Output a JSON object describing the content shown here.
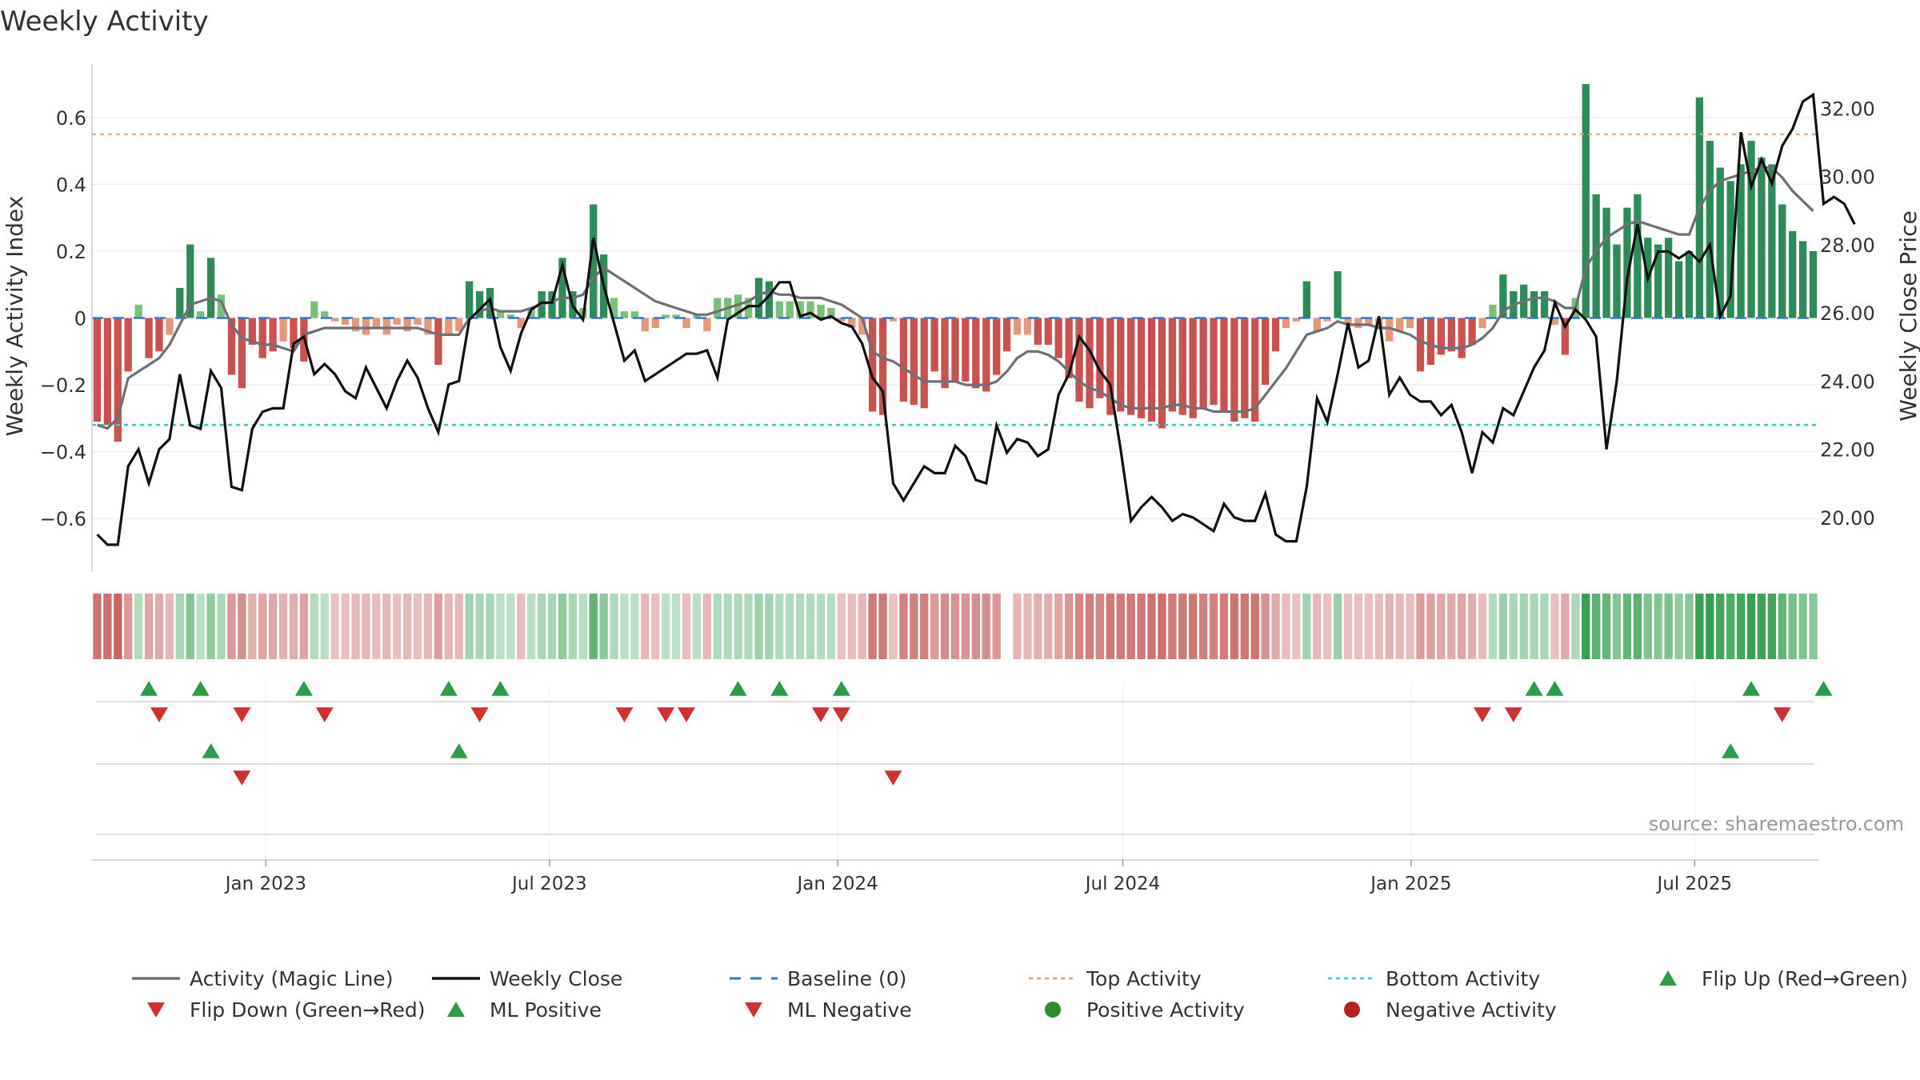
{
  "chart_data": {
    "type": "bar",
    "title": "Weekly Activity",
    "ylabel": "Weekly Activity Index",
    "y2label": "Weekly Close Price",
    "ylim": [
      -0.76,
      0.76
    ],
    "y2lim": [
      18.4,
      33.3
    ],
    "yticks": [
      0.6,
      0.4,
      0.2,
      0,
      -0.2,
      -0.4,
      -0.6
    ],
    "ytick_labels": [
      "0.6",
      "0.4",
      "0.2",
      "0",
      "−0.2",
      "−0.4",
      "−0.6"
    ],
    "y2ticks": [
      32,
      30,
      28,
      26,
      24,
      22,
      20
    ],
    "y2tick_labels": [
      "32.00",
      "30.00",
      "28.00",
      "26.00",
      "24.00",
      "22.00",
      "20.00"
    ],
    "x_start_date": "2022-09-12",
    "x_end_date": "2025-09-18",
    "x_ticks": [
      {
        "date": "2023-01-01",
        "label": "Jan 2023"
      },
      {
        "date": "2023-07-01",
        "label": "Jul 2023"
      },
      {
        "date": "2024-01-01",
        "label": "Jan 2024"
      },
      {
        "date": "2024-07-01",
        "label": "Jul 2024"
      },
      {
        "date": "2025-01-01",
        "label": "Jan 2025"
      },
      {
        "date": "2025-07-01",
        "label": "Jul 2025"
      }
    ],
    "top_activity": 0.55,
    "bottom_activity": -0.32,
    "baseline": 0,
    "activity_values": [
      -0.31,
      -0.32,
      -0.37,
      -0.16,
      0.04,
      -0.12,
      -0.1,
      -0.05,
      0.09,
      0.22,
      0.02,
      0.18,
      0.07,
      -0.17,
      -0.21,
      -0.08,
      -0.12,
      -0.1,
      -0.07,
      -0.09,
      -0.13,
      0.05,
      0.02,
      -0.01,
      -0.02,
      -0.04,
      -0.05,
      -0.03,
      -0.05,
      -0.02,
      -0.04,
      -0.02,
      -0.05,
      -0.14,
      -0.05,
      -0.04,
      0.11,
      0.08,
      0.09,
      0.02,
      0.01,
      -0.03,
      0.03,
      0.08,
      0.08,
      0.18,
      0.08,
      0.03,
      0.34,
      0.19,
      0.06,
      0.02,
      0.02,
      -0.04,
      -0.03,
      0.01,
      0.01,
      -0.03,
      0.01,
      -0.04,
      0.06,
      0.06,
      0.07,
      0.06,
      0.12,
      0.11,
      0.05,
      0.05,
      0.05,
      0.05,
      0.04,
      0.03,
      -0.01,
      -0.03,
      -0.05,
      -0.28,
      -0.29,
      -0.01,
      -0.25,
      -0.26,
      -0.27,
      -0.16,
      -0.21,
      -0.19,
      -0.19,
      -0.21,
      -0.22,
      -0.17,
      -0.1,
      -0.05,
      -0.05,
      -0.08,
      -0.08,
      -0.12,
      -0.18,
      -0.25,
      -0.27,
      -0.24,
      -0.29,
      -0.28,
      -0.29,
      -0.3,
      -0.31,
      -0.33,
      -0.28,
      -0.29,
      -0.3,
      -0.27,
      -0.26,
      -0.28,
      -0.31,
      -0.3,
      -0.31,
      -0.2,
      -0.1,
      -0.03,
      -0.01,
      0.11,
      -0.04,
      -0.01,
      0.14,
      -0.02,
      -0.03,
      -0.02,
      -0.03,
      -0.07,
      -0.04,
      -0.03,
      -0.16,
      -0.14,
      -0.11,
      -0.1,
      -0.12,
      -0.08,
      -0.03,
      0.04,
      0.13,
      0.08,
      0.1,
      0.08,
      0.08,
      -0.02,
      -0.11,
      0.06,
      0.7,
      0.37,
      0.33,
      0.22,
      0.33,
      0.37,
      0.24,
      0.22,
      0.24,
      0.17,
      0.2,
      0.66,
      0.53,
      0.45,
      0.41,
      0.46,
      0.53,
      0.48,
      0.46,
      0.34,
      0.26,
      0.23,
      0.2
    ],
    "heatmap_gap_index": 88,
    "magic_line": [
      -0.32,
      -0.33,
      -0.3,
      -0.18,
      -0.16,
      -0.14,
      -0.12,
      -0.08,
      -0.02,
      0.04,
      0.05,
      0.06,
      0.05,
      -0.02,
      -0.06,
      -0.07,
      -0.08,
      -0.08,
      -0.09,
      -0.1,
      -0.05,
      -0.04,
      -0.03,
      -0.03,
      -0.03,
      -0.03,
      -0.03,
      -0.03,
      -0.03,
      -0.03,
      -0.03,
      -0.03,
      -0.04,
      -0.05,
      -0.05,
      -0.05,
      0.0,
      0.02,
      0.03,
      0.02,
      0.02,
      0.02,
      0.03,
      0.04,
      0.05,
      0.06,
      0.06,
      0.07,
      0.12,
      0.15,
      0.13,
      0.11,
      0.09,
      0.07,
      0.05,
      0.04,
      0.03,
      0.02,
      0.01,
      0.01,
      0.02,
      0.03,
      0.04,
      0.05,
      0.07,
      0.08,
      0.07,
      0.07,
      0.06,
      0.06,
      0.06,
      0.05,
      0.04,
      0.02,
      0.0,
      -0.1,
      -0.12,
      -0.13,
      -0.15,
      -0.17,
      -0.19,
      -0.19,
      -0.19,
      -0.19,
      -0.2,
      -0.2,
      -0.2,
      -0.19,
      -0.16,
      -0.12,
      -0.1,
      -0.1,
      -0.11,
      -0.13,
      -0.16,
      -0.19,
      -0.21,
      -0.22,
      -0.24,
      -0.26,
      -0.27,
      -0.27,
      -0.27,
      -0.27,
      -0.26,
      -0.26,
      -0.27,
      -0.27,
      -0.28,
      -0.28,
      -0.28,
      -0.28,
      -0.27,
      -0.23,
      -0.19,
      -0.15,
      -0.1,
      -0.05,
      -0.04,
      -0.03,
      -0.01,
      -0.02,
      -0.02,
      -0.02,
      -0.03,
      -0.03,
      -0.04,
      -0.05,
      -0.07,
      -0.08,
      -0.09,
      -0.09,
      -0.09,
      -0.08,
      -0.06,
      -0.03,
      0.02,
      0.04,
      0.05,
      0.06,
      0.06,
      0.05,
      0.03,
      0.03,
      0.15,
      0.2,
      0.24,
      0.26,
      0.28,
      0.29,
      0.28,
      0.27,
      0.26,
      0.25,
      0.25,
      0.33,
      0.38,
      0.41,
      0.42,
      0.43,
      0.44,
      0.45,
      0.45,
      0.42,
      0.38,
      0.35,
      0.32
    ],
    "weekly_close": [
      19.5,
      19.2,
      19.2,
      21.5,
      22.0,
      21.0,
      22.0,
      22.3,
      24.2,
      22.7,
      22.6,
      24.3,
      23.8,
      20.9,
      20.8,
      22.6,
      23.1,
      23.2,
      23.2,
      25.1,
      25.3,
      24.2,
      24.5,
      24.2,
      23.7,
      23.5,
      24.4,
      23.8,
      23.2,
      24.0,
      24.6,
      24.1,
      23.2,
      22.5,
      23.9,
      24.0,
      25.8,
      26.1,
      26.4,
      25.0,
      24.3,
      25.4,
      26.1,
      26.3,
      26.3,
      27.4,
      26.2,
      25.8,
      28.2,
      26.8,
      25.7,
      24.6,
      24.9,
      24.0,
      24.2,
      24.4,
      24.6,
      24.8,
      24.8,
      24.9,
      24.1,
      25.8,
      26.0,
      26.2,
      26.2,
      26.5,
      26.9,
      26.9,
      25.9,
      26.0,
      25.8,
      25.9,
      25.7,
      25.6,
      25.1,
      24.1,
      23.7,
      21.0,
      20.5,
      21.0,
      21.5,
      21.3,
      21.3,
      22.1,
      21.8,
      21.1,
      21.0,
      22.7,
      21.9,
      22.3,
      22.2,
      21.8,
      22.0,
      23.6,
      24.2,
      25.3,
      24.9,
      24.3,
      23.9,
      22.0,
      19.9,
      20.3,
      20.6,
      20.3,
      19.9,
      20.1,
      20.0,
      19.8,
      19.6,
      20.4,
      20.0,
      19.9,
      19.9,
      20.7,
      19.5,
      19.3,
      19.3,
      20.9,
      23.5,
      22.8,
      24.2,
      25.7,
      24.4,
      24.6,
      25.9,
      23.6,
      24.1,
      23.6,
      23.4,
      23.4,
      23.0,
      23.3,
      22.5,
      21.3,
      22.5,
      22.2,
      23.2,
      23.0,
      23.7,
      24.4,
      24.9,
      26.3,
      25.6,
      26.1,
      25.8,
      25.3,
      22.0,
      24.0,
      27.0,
      28.6,
      27.0,
      27.8,
      27.8,
      27.6,
      27.8,
      27.5,
      28.0,
      25.9,
      26.5,
      31.3,
      29.7,
      30.5,
      29.8,
      30.9,
      31.4,
      32.2,
      32.4,
      29.2,
      29.4,
      29.2,
      28.6
    ],
    "signal_rows": {
      "flip_up": [
        5,
        10,
        20,
        34,
        39,
        62,
        66,
        72,
        139,
        141,
        160,
        167
      ],
      "flip_down": [
        6,
        14,
        22,
        37,
        51,
        55,
        57,
        70,
        72,
        134,
        137,
        163
      ],
      "ml_positive": [
        11,
        35,
        158
      ],
      "ml_negative": [
        14,
        77
      ]
    },
    "source": "source: sharemaestro.com",
    "legend": [
      {
        "label": "Activity (Magic Line)",
        "kind": "line",
        "color": "#6f6f76"
      },
      {
        "label": "Weekly Close",
        "kind": "line",
        "color": "#111111"
      },
      {
        "label": "Baseline (0)",
        "kind": "dash",
        "color": "#3a78c2"
      },
      {
        "label": "Top Activity",
        "kind": "dot",
        "color": "#e0a070"
      },
      {
        "label": "Bottom Activity",
        "kind": "dot",
        "color": "#3cc7c7"
      },
      {
        "label": "Flip Up (Red→Green)",
        "kind": "tri-up",
        "color": "#2e9a4a"
      },
      {
        "label": "Flip Down (Green→Red)",
        "kind": "tri-down",
        "color": "#d03030"
      },
      {
        "label": "ML Positive",
        "kind": "tri-up",
        "color": "#2e9a4a"
      },
      {
        "label": "ML Negative",
        "kind": "tri-down",
        "color": "#d03030"
      },
      {
        "label": "Positive Activity",
        "kind": "circle",
        "color": "#2e8b2e"
      },
      {
        "label": "Negative Activity",
        "kind": "circle",
        "color": "#b22222"
      }
    ],
    "colors": {
      "pos_strong": "#2e8b57",
      "pos_light": "#7bbf7b",
      "neg_strong": "#c8524f",
      "neg_light": "#e8987a",
      "grid": "#e8e8e8",
      "axis": "#cccccc"
    }
  }
}
